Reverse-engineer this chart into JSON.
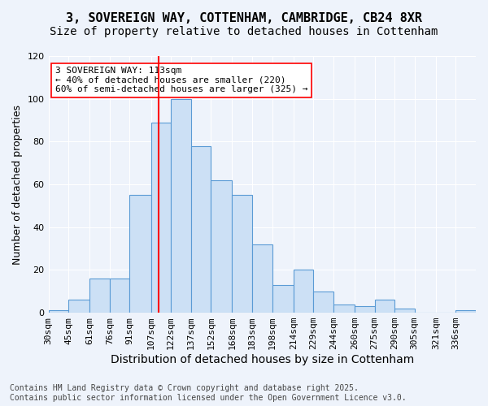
{
  "title_line1": "3, SOVEREIGN WAY, COTTENHAM, CAMBRIDGE, CB24 8XR",
  "title_line2": "Size of property relative to detached houses in Cottenham",
  "xlabel": "Distribution of detached houses by size in Cottenham",
  "ylabel": "Number of detached properties",
  "footer": "Contains HM Land Registry data © Crown copyright and database right 2025.\nContains public sector information licensed under the Open Government Licence v3.0.",
  "bin_labels": [
    "30sqm",
    "45sqm",
    "61sqm",
    "76sqm",
    "91sqm",
    "107sqm",
    "122sqm",
    "137sqm",
    "152sqm",
    "168sqm",
    "183sqm",
    "198sqm",
    "214sqm",
    "229sqm",
    "244sqm",
    "260sqm",
    "275sqm",
    "290sqm",
    "305sqm",
    "321sqm",
    "336sqm"
  ],
  "bin_edges": [
    30,
    45,
    61,
    76,
    91,
    107,
    122,
    137,
    152,
    168,
    183,
    198,
    214,
    229,
    244,
    260,
    275,
    290,
    305,
    321,
    336,
    351
  ],
  "counts": [
    1,
    6,
    16,
    16,
    55,
    89,
    100,
    78,
    62,
    55,
    32,
    13,
    20,
    10,
    4,
    3,
    6,
    2,
    0,
    0,
    1
  ],
  "bar_color": "#cce0f5",
  "bar_edge_color": "#5b9bd5",
  "ref_line_x": 113,
  "ref_line_color": "red",
  "annotation_text": "3 SOVEREIGN WAY: 113sqm\n← 40% of detached houses are smaller (220)\n60% of semi-detached houses are larger (325) →",
  "annotation_box_color": "white",
  "annotation_box_edge_color": "red",
  "ylim": [
    0,
    120
  ],
  "yticks": [
    0,
    20,
    40,
    60,
    80,
    100,
    120
  ],
  "background_color": "#eef3fb",
  "grid_color": "white",
  "title_fontsize": 11,
  "subtitle_fontsize": 10,
  "axis_label_fontsize": 9,
  "tick_fontsize": 8,
  "annotation_fontsize": 8,
  "footer_fontsize": 7
}
